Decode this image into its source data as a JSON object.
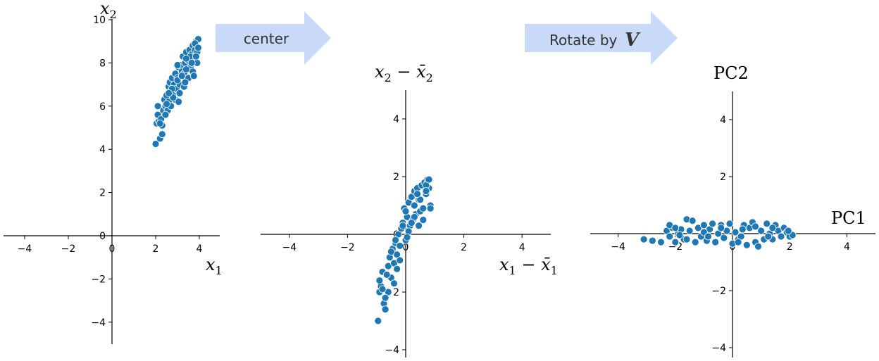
{
  "colors": {
    "marker": "#1f77b4",
    "arrow": "#c9daf8"
  },
  "arrows": {
    "center_label": "center",
    "rotate_label": "Rotate by",
    "rotate_symbol": "V"
  },
  "chart_data": [
    {
      "type": "scatter",
      "title": "",
      "xlabel": "x1",
      "ylabel": "x2",
      "xlabel_parts": [
        "x",
        "1"
      ],
      "ylabel_parts": [
        "x",
        "2"
      ],
      "xlim": [
        -5,
        5
      ],
      "ylim": [
        -5,
        10
      ],
      "xticks": [
        -4,
        -2,
        0,
        2,
        4
      ],
      "yticks": [
        -4,
        -2,
        0,
        2,
        4,
        6,
        8,
        10
      ],
      "x": [
        2.0,
        2.05,
        2.1,
        2.15,
        2.2,
        2.3,
        2.1,
        2.25,
        2.35,
        2.4,
        2.45,
        2.5,
        2.55,
        2.6,
        2.6,
        2.65,
        2.7,
        2.75,
        2.8,
        2.85,
        2.9,
        2.95,
        3.0,
        3.05,
        3.1,
        3.15,
        3.2,
        3.25,
        3.3,
        3.35,
        3.4,
        3.45,
        3.5,
        3.55,
        3.6,
        3.65,
        3.7,
        3.75,
        3.8,
        3.85,
        3.9,
        3.95,
        2.7,
        2.9,
        3.1,
        3.3,
        3.5,
        3.7,
        3.9,
        2.5,
        2.8,
        3.0,
        3.2,
        3.4,
        3.6,
        3.8,
        2.3,
        2.45,
        2.75,
        3.05,
        3.35,
        3.65,
        3.85,
        3.95,
        2.2,
        2.6,
        3.0,
        3.4,
        3.75
      ],
      "y": [
        4.25,
        5.2,
        5.6,
        5.3,
        4.5,
        4.7,
        6.0,
        5.4,
        5.8,
        6.3,
        6.0,
        6.5,
        5.8,
        6.9,
        6.2,
        7.1,
        6.7,
        7.3,
        6.5,
        7.0,
        7.5,
        6.8,
        7.3,
        7.8,
        7.0,
        7.9,
        7.6,
        8.3,
        7.5,
        8.0,
        8.5,
        7.7,
        8.1,
        8.6,
        7.8,
        8.4,
        8.8,
        8.2,
        8.6,
        9.0,
        8.5,
        9.1,
        6.0,
        6.3,
        6.6,
        6.9,
        7.3,
        7.6,
        8.0,
        6.1,
        6.4,
        7.2,
        7.4,
        7.7,
        8.3,
        8.9,
        5.1,
        5.6,
        6.8,
        6.2,
        7.1,
        8.0,
        8.3,
        8.7,
        5.2,
        6.6,
        7.9,
        8.2,
        7.4
      ]
    },
    {
      "type": "scatter",
      "title": "",
      "xlabel": "x1 - x̄1",
      "ylabel": "x2 - x̄2",
      "xlabel_parts": [
        "x",
        "1",
        " − ",
        "x̄",
        "1"
      ],
      "ylabel_parts": [
        "x",
        "2",
        " − ",
        "x̄",
        "2"
      ],
      "xlim": [
        -5,
        5
      ],
      "ylim": [
        -5,
        5
      ],
      "xticks": [
        -4,
        -2,
        0,
        2,
        4
      ],
      "yticks": [
        -4,
        -2,
        0,
        2,
        4
      ],
      "x": [
        -0.95,
        -0.9,
        -0.85,
        -0.8,
        -0.75,
        -0.7,
        -0.9,
        -0.6,
        -0.55,
        -0.5,
        -0.45,
        -0.4,
        -0.35,
        -0.3,
        -0.25,
        -0.2,
        -0.15,
        -0.1,
        -0.05,
        0.0,
        0.05,
        0.1,
        0.15,
        0.2,
        0.25,
        0.3,
        0.35,
        0.4,
        0.45,
        0.5,
        0.55,
        0.6,
        0.65,
        0.7,
        0.75,
        0.8,
        0.85,
        -0.6,
        -0.4,
        -0.2,
        0.1,
        0.3,
        0.5,
        0.7,
        -0.7,
        -0.3,
        0.0,
        0.2,
        0.4,
        0.6,
        0.8,
        -0.5,
        -0.1,
        0.3,
        0.7,
        -0.8,
        -0.65,
        -0.35,
        0.05,
        0.45,
        0.85
      ],
      "y": [
        -3.0,
        -2.0,
        -1.8,
        -1.3,
        -2.4,
        -2.6,
        -1.6,
        -1.1,
        -0.8,
        -1.5,
        -0.5,
        -1.0,
        -0.3,
        -0.7,
        0.0,
        -0.4,
        0.2,
        0.4,
        0.9,
        -0.2,
        0.6,
        1.1,
        0.3,
        1.3,
        0.5,
        1.5,
        0.7,
        1.6,
        1.2,
        0.8,
        1.7,
        0.9,
        1.8,
        1.4,
        1.9,
        1.6,
        1.0,
        -2.0,
        -1.7,
        -0.9,
        0.1,
        0.6,
        1.2,
        1.7,
        -2.2,
        -1.2,
        0.8,
        0.4,
        1.4,
        0.5,
        1.9,
        -0.6,
        0.3,
        1.0,
        1.5,
        -1.9,
        -1.4,
        -0.2,
        -0.1,
        0.3,
        0.9
      ]
    },
    {
      "type": "scatter",
      "title": "",
      "xlabel": "PC1",
      "ylabel": "PC2",
      "xlim": [
        -5,
        5
      ],
      "ylim": [
        -5,
        5
      ],
      "xticks": [
        -4,
        -2,
        0,
        2,
        4
      ],
      "yticks": [
        -4,
        -2,
        0,
        2,
        4
      ],
      "x": [
        -3.1,
        -2.8,
        -2.5,
        -2.3,
        -2.2,
        -2.1,
        -2.0,
        -1.9,
        -1.8,
        -1.7,
        -1.6,
        -1.5,
        -1.4,
        -1.3,
        -1.2,
        -1.1,
        -1.0,
        -0.9,
        -0.8,
        -0.7,
        -0.6,
        -0.5,
        -0.4,
        -0.3,
        -0.2,
        -0.1,
        0.0,
        0.1,
        0.2,
        0.3,
        0.4,
        0.5,
        0.6,
        0.7,
        0.8,
        0.9,
        1.0,
        1.1,
        1.2,
        1.3,
        1.4,
        1.5,
        1.6,
        1.7,
        1.8,
        1.9,
        2.0,
        2.1,
        -2.2,
        -1.6,
        -1.0,
        -0.4,
        0.2,
        0.8,
        1.4,
        1.95,
        -1.85,
        -0.85,
        0.35,
        1.25,
        -2.0
      ],
      "y": [
        -0.2,
        -0.25,
        -0.3,
        0.1,
        -0.1,
        0.2,
        -0.3,
        0.0,
        0.15,
        -0.2,
        0.5,
        0.1,
        0.45,
        -0.3,
        0.2,
        -0.1,
        0.3,
        -0.25,
        0.15,
        0.35,
        -0.3,
        0.0,
        0.3,
        -0.15,
        0.1,
        0.35,
        -0.35,
        0.05,
        -0.2,
        -0.1,
        0.3,
        -0.4,
        0.2,
        0.4,
        -0.3,
        -0.45,
        0.1,
        -0.2,
        0.35,
        0.0,
        -0.2,
        0.3,
        0.1,
        -0.1,
        0.2,
        0.05,
        -0.1,
        -0.05,
        0.3,
        -0.2,
        0.05,
        0.2,
        -0.3,
        0.25,
        0.2,
        0.1,
        -0.05,
        -0.1,
        0.15,
        -0.1,
        0.2
      ]
    }
  ]
}
